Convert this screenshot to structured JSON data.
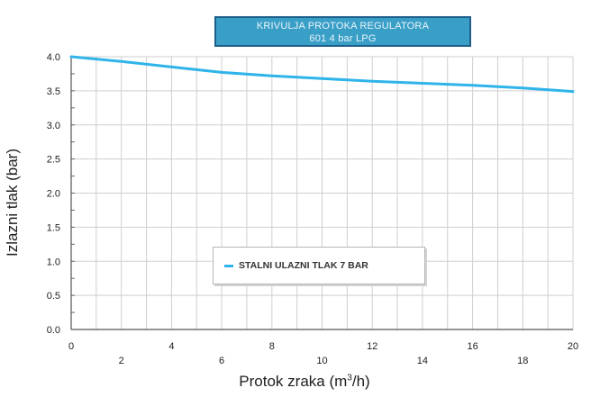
{
  "chart_data": {
    "type": "line",
    "title": [
      "KRIVULJA PROTOKA REGULATORA",
      "601 4 bar LPG"
    ],
    "xlabel_main": "Protok zraka (m",
    "xlabel_sup": "3",
    "xlabel_end": "/h)",
    "ylabel": "Izlazni tlak (bar)",
    "xlim": [
      0,
      20
    ],
    "ylim": [
      0,
      4
    ],
    "x_ticks": [
      "0",
      "2",
      "4",
      "6",
      "8",
      "10",
      "12",
      "14",
      "16",
      "18",
      "20"
    ],
    "y_ticks": [
      "0.0",
      "0.5",
      "1.0",
      "1.5",
      "2.0",
      "2.5",
      "3.0",
      "3.5",
      "4.0"
    ],
    "grid": true,
    "legend_position": "lower-center",
    "series": [
      {
        "name": "STALNI ULAZNI TLAK 7 BAR",
        "color": "#2fb4e9",
        "x": [
          0,
          2,
          4,
          6,
          8,
          10,
          12,
          14,
          16,
          18,
          20
        ],
        "y": [
          4.0,
          3.93,
          3.85,
          3.77,
          3.72,
          3.68,
          3.64,
          3.61,
          3.58,
          3.54,
          3.49
        ]
      }
    ]
  }
}
